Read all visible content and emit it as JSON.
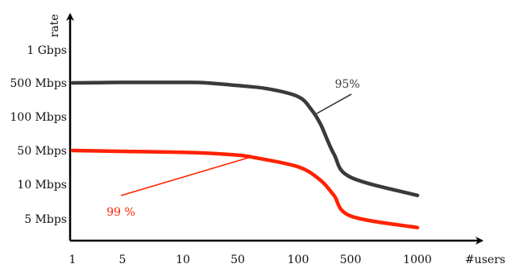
{
  "chart_data": {
    "type": "line",
    "title": "",
    "xlabel": "#users",
    "ylabel": "rate",
    "x_ticks": [
      "1",
      "5",
      "10",
      "50",
      "100",
      "500",
      "1000"
    ],
    "y_ticks": [
      "5 Mbps",
      "10 Mbps",
      "50 Mbps",
      "100 Mbps",
      "500 Mbps",
      "1 Gbps"
    ],
    "grid": false,
    "x_range": [
      1,
      1000
    ],
    "y_range": [
      "5 Mbps",
      "1 Gbps"
    ],
    "series": [
      {
        "color": "#3a3a3a",
        "annotation": "95%",
        "annotation_x": 170,
        "points": [
          [
            1,
            500
          ],
          [
            5,
            505
          ],
          [
            10,
            505
          ],
          [
            20,
            500
          ],
          [
            50,
            440
          ],
          [
            70,
            380
          ],
          [
            100,
            260
          ],
          [
            150,
            140
          ],
          [
            200,
            85
          ],
          [
            300,
            42
          ],
          [
            500,
            14
          ],
          [
            1000,
            8
          ]
        ]
      },
      {
        "color": "#ff2200",
        "annotation": "99 %",
        "annotation_x": 58,
        "points": [
          [
            1,
            50
          ],
          [
            5,
            48
          ],
          [
            10,
            46
          ],
          [
            20,
            44
          ],
          [
            50,
            40
          ],
          [
            60,
            36
          ],
          [
            100,
            23
          ],
          [
            200,
            12
          ],
          [
            300,
            8
          ],
          [
            500,
            5.3
          ],
          [
            1000,
            4.2
          ]
        ]
      }
    ]
  }
}
